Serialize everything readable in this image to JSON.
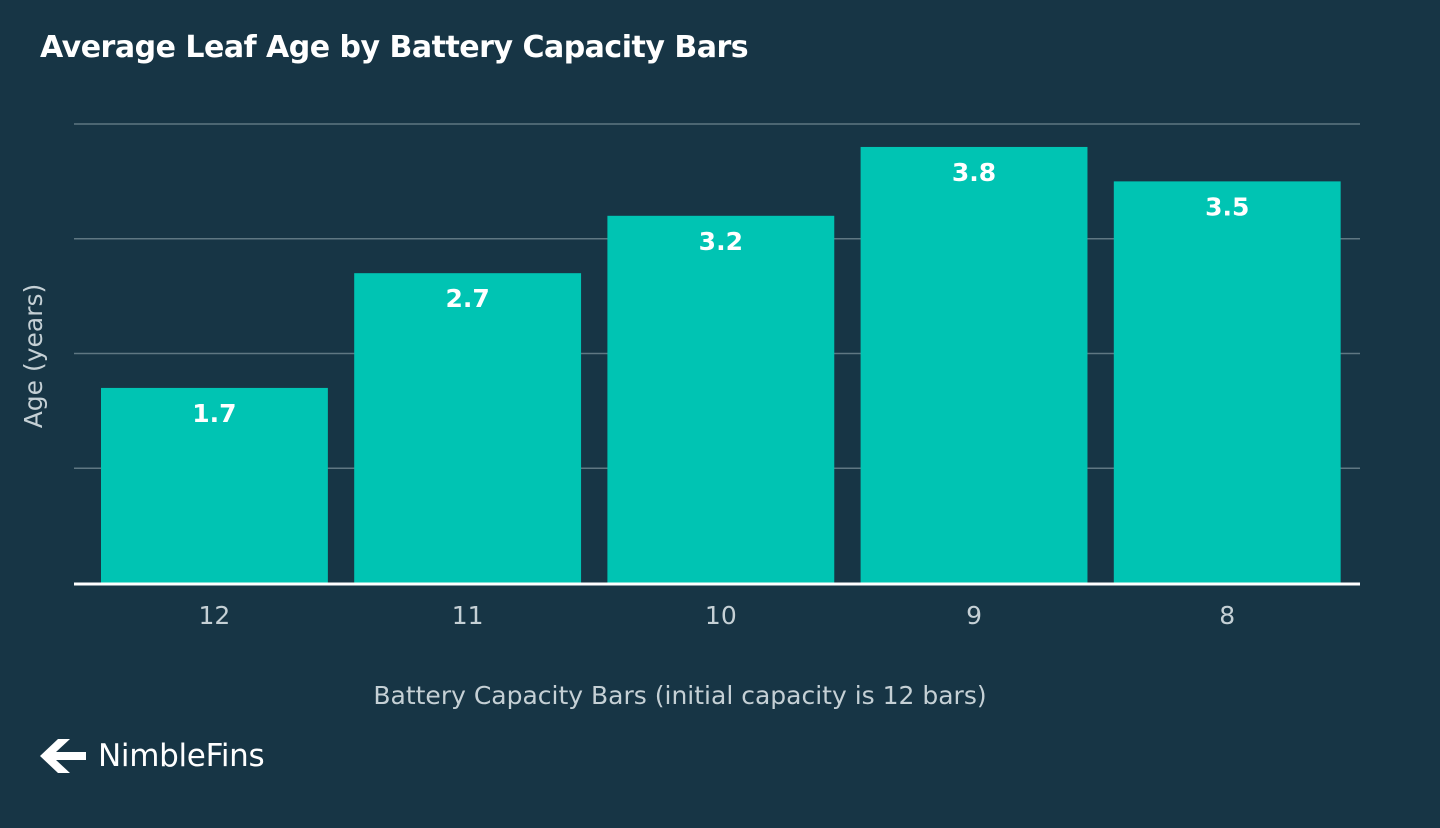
{
  "chart_data": {
    "type": "bar",
    "title": "Average Leaf Age by Battery Capacity Bars",
    "xlabel": "Battery Capacity Bars (initial capacity is 12 bars)",
    "ylabel": "Age (years)",
    "categories": [
      "12",
      "11",
      "10",
      "9",
      "8"
    ],
    "values": [
      1.7,
      2.7,
      3.2,
      3.8,
      3.5
    ],
    "value_labels": [
      "1.7",
      "2.7",
      "3.2",
      "3.8",
      "3.5"
    ],
    "ylim": [
      0,
      4
    ],
    "grid": true,
    "gridlines": [
      1,
      2,
      3,
      4
    ],
    "bar_color": "#00c4b3",
    "background_color": "#173545",
    "grid_color": "#5f7782",
    "axis_color": "#ffffff",
    "label_color": "#c5d0d5"
  },
  "brand": {
    "name": "NimbleFins",
    "icon": "arrow-logo-icon"
  }
}
